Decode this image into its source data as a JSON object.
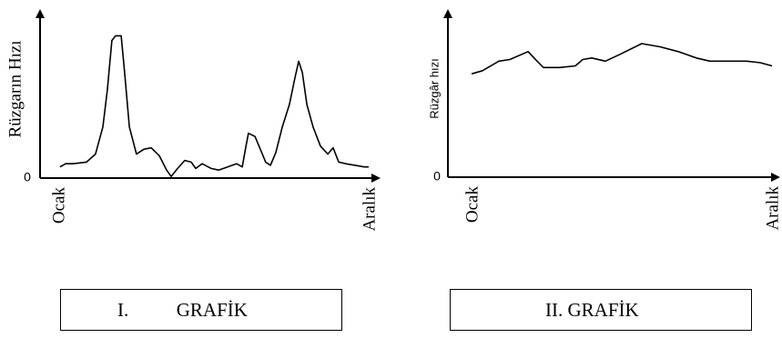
{
  "chart_data": [
    {
      "type": "line",
      "ylabel": "Rüzgarın Hızı",
      "caption": "I.          GRAFİK",
      "xlim": [
        1,
        12
      ],
      "xticks": [
        {
          "value": 1,
          "label": "Ocak"
        },
        {
          "value": 12,
          "label": "Aralık"
        }
      ],
      "ylim": [
        0,
        100
      ],
      "yticks": [
        0
      ],
      "color": "#000000",
      "x": [
        1.06,
        1.26,
        1.52,
        2.0,
        2.32,
        2.58,
        2.74,
        2.9,
        3.03,
        3.23,
        3.35,
        3.52,
        3.77,
        4.03,
        4.29,
        4.58,
        4.84,
        5.0,
        5.23,
        5.48,
        5.71,
        5.87,
        6.1,
        6.42,
        6.68,
        7.0,
        7.32,
        7.52,
        7.65,
        7.74,
        7.97,
        8.16,
        8.35,
        8.52,
        8.71,
        8.94,
        9.19,
        9.39,
        9.52,
        9.65,
        9.81,
        10.03,
        10.29,
        10.55,
        10.74,
        10.94,
        11.19,
        11.52,
        11.84,
        12
      ],
      "values": [
        7,
        9,
        9,
        10,
        15,
        32,
        55,
        86,
        89,
        89,
        66,
        32,
        15,
        18,
        19,
        14,
        5,
        1,
        6,
        11,
        10,
        6,
        9,
        6,
        5,
        7,
        9,
        7,
        20,
        28,
        26,
        18,
        10,
        8,
        16,
        32,
        46,
        63,
        73,
        66,
        46,
        32,
        20,
        15,
        19,
        10,
        9,
        8,
        7,
        7
      ]
    },
    {
      "type": "line",
      "ylabel": "Rüzgâr hızı",
      "caption": "II. GRAFİK",
      "xlim": [
        1,
        12
      ],
      "xticks": [
        {
          "value": 1,
          "label": "Ocak"
        },
        {
          "value": 12,
          "label": "Aralık"
        }
      ],
      "ylim": [
        0,
        100
      ],
      "yticks": [
        0
      ],
      "color": "#000000",
      "x": [
        1,
        1.4,
        2,
        2.4,
        3.07,
        3.4,
        3.63,
        4.23,
        4.8,
        5.07,
        5.4,
        5.9,
        6.4,
        7.23,
        7.9,
        8.57,
        9.23,
        9.73,
        10.4,
        11.07,
        11.57,
        12
      ],
      "values": [
        65,
        67,
        73,
        74,
        79,
        73,
        69,
        69,
        70,
        74,
        75,
        73,
        77,
        84,
        82,
        79,
        75,
        73,
        73,
        73,
        72,
        70
      ]
    }
  ]
}
